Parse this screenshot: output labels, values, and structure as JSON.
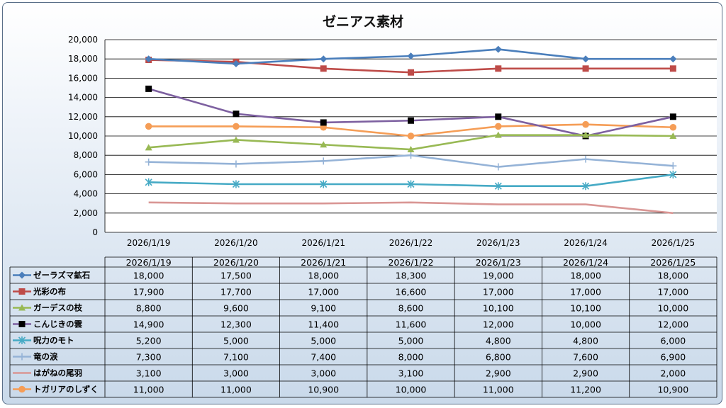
{
  "chart_data": {
    "type": "line",
    "title": "ゼニアス素材",
    "ylim": [
      0,
      20000
    ],
    "y_tick_labels": [
      "0",
      "2,000",
      "4,000",
      "6,000",
      "8,000",
      "10,000",
      "12,000",
      "14,000",
      "16,000",
      "18,000",
      "20,000"
    ],
    "categories": [
      "2026/1/19",
      "2026/1/20",
      "2026/1/21",
      "2026/1/22",
      "2026/1/23",
      "2026/1/24",
      "2026/1/25"
    ],
    "grid": true,
    "legend": "data-table",
    "series": [
      {
        "name": "ゼーラズマ鉱石",
        "color": "#4a7ebb",
        "marker": "diamond",
        "values": [
          18000,
          17500,
          18000,
          18300,
          19000,
          18000,
          18000
        ],
        "labels": [
          "18,000",
          "17,500",
          "18,000",
          "18,300",
          "19,000",
          "18,000",
          "18,000"
        ]
      },
      {
        "name": "光彩の布",
        "color": "#be4b48",
        "marker": "square",
        "values": [
          17900,
          17700,
          17000,
          16600,
          17000,
          17000,
          17000
        ],
        "labels": [
          "17,900",
          "17,700",
          "17,000",
          "16,600",
          "17,000",
          "17,000",
          "17,000"
        ]
      },
      {
        "name": "ガーデスの枝",
        "color": "#98b954",
        "marker": "triangle",
        "values": [
          8800,
          9600,
          9100,
          8600,
          10100,
          10100,
          10000
        ],
        "labels": [
          "8,800",
          "9,600",
          "9,100",
          "8,600",
          "10,100",
          "10,100",
          "10,000"
        ]
      },
      {
        "name": "こんじきの雲",
        "color": "#7d60a0",
        "marker": "square-black",
        "values": [
          14900,
          12300,
          11400,
          11600,
          12000,
          10000,
          12000
        ],
        "labels": [
          "14,900",
          "12,300",
          "11,400",
          "11,600",
          "12,000",
          "10,000",
          "12,000"
        ]
      },
      {
        "name": "呪力のモト",
        "color": "#46aac5",
        "marker": "star",
        "values": [
          5200,
          5000,
          5000,
          5000,
          4800,
          4800,
          6000
        ],
        "labels": [
          "5,200",
          "5,000",
          "5,000",
          "5,000",
          "4,800",
          "4,800",
          "6,000"
        ]
      },
      {
        "name": "竜の涙",
        "color": "#95b3d7",
        "marker": "plus",
        "values": [
          7300,
          7100,
          7400,
          8000,
          6800,
          7600,
          6900
        ],
        "labels": [
          "7,300",
          "7,100",
          "7,400",
          "8,000",
          "6,800",
          "7,600",
          "6,900"
        ]
      },
      {
        "name": "はがねの尾羽",
        "color": "#d99694",
        "marker": "none",
        "values": [
          3100,
          3000,
          3000,
          3100,
          2900,
          2900,
          2000
        ],
        "labels": [
          "3,100",
          "3,000",
          "3,000",
          "3,100",
          "2,900",
          "2,900",
          "2,000"
        ]
      },
      {
        "name": "トガリアのしずく",
        "color": "#f59d56",
        "marker": "circle",
        "values": [
          11000,
          11000,
          10900,
          10000,
          11000,
          11200,
          10900
        ],
        "labels": [
          "11,000",
          "11,000",
          "10,900",
          "10,000",
          "11,000",
          "11,200",
          "10,900"
        ]
      }
    ]
  }
}
